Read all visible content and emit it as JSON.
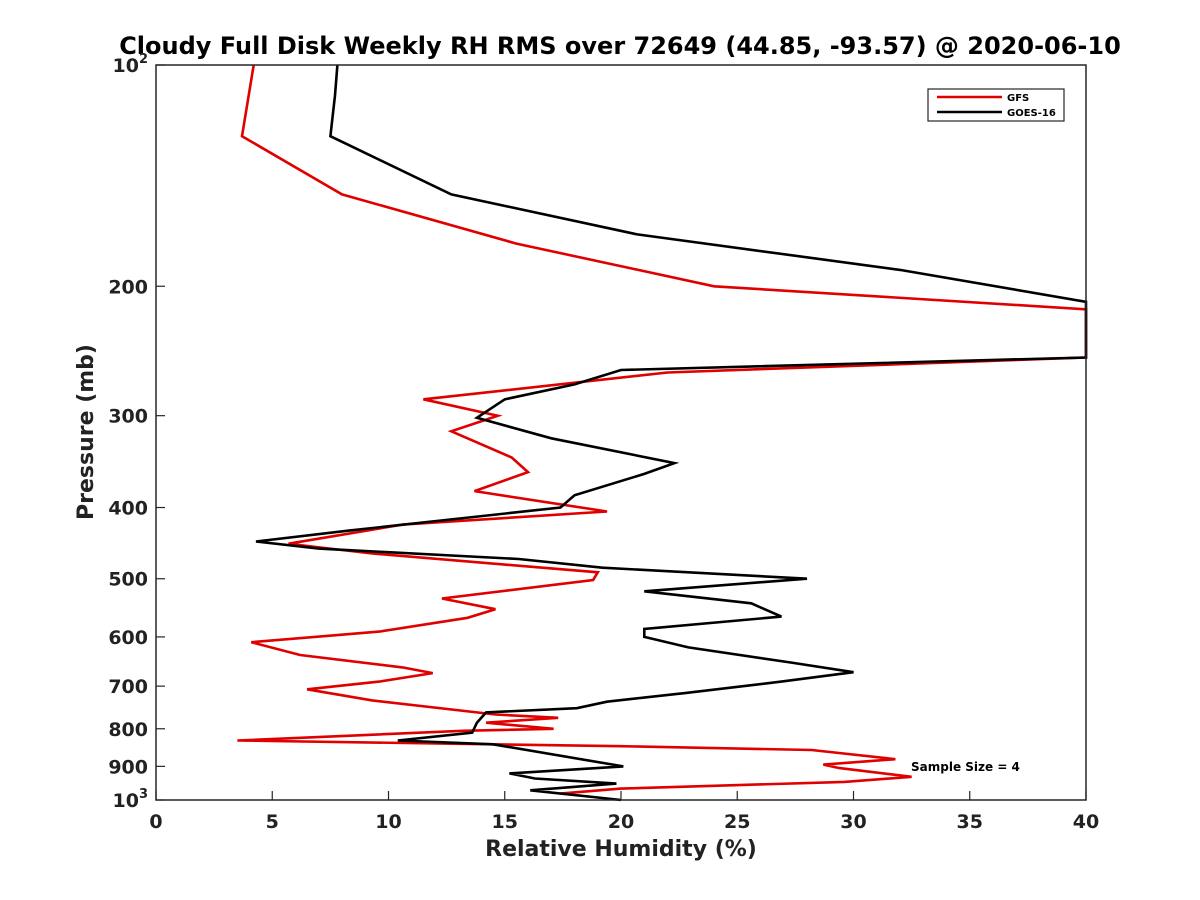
{
  "chart_data": {
    "type": "line",
    "title": "Cloudy Full Disk Weekly RH RMS over 72649 (44.85, -93.57) @ 2020-06-10",
    "xlabel": "Relative Humidity (%)",
    "ylabel": "Pressure (mb)",
    "xlim": [
      0,
      40
    ],
    "ylim": [
      100,
      1000
    ],
    "y_scale": "log",
    "y_reversed": true,
    "x_ticks": [
      "0",
      "5",
      "10",
      "15",
      "20",
      "25",
      "30",
      "35",
      "40"
    ],
    "y_ticks": [
      {
        "value": 100,
        "base": "10",
        "exp": "2"
      },
      {
        "value": 200,
        "label": "200"
      },
      {
        "value": 300,
        "label": "300"
      },
      {
        "value": 400,
        "label": "400"
      },
      {
        "value": 500,
        "label": "500"
      },
      {
        "value": 600,
        "label": "600"
      },
      {
        "value": 700,
        "label": "700"
      },
      {
        "value": 800,
        "label": "800"
      },
      {
        "value": 900,
        "label": "900"
      },
      {
        "value": 1000,
        "base": "10",
        "exp": "3"
      }
    ],
    "grid": false,
    "legend_position": "top-right",
    "annotation": "Sample Size = 4",
    "series": [
      {
        "name": "GFS",
        "color": "#e00000",
        "points": [
          [
            4.2,
            100
          ],
          [
            3.7,
            125
          ],
          [
            8.0,
            150
          ],
          [
            15.5,
            175
          ],
          [
            24.0,
            200
          ],
          [
            41.0,
            215
          ],
          [
            41.0,
            250
          ],
          [
            22.0,
            262
          ],
          [
            11.5,
            285
          ],
          [
            14.7,
            300
          ],
          [
            12.7,
            315
          ],
          [
            15.3,
            342
          ],
          [
            16.0,
            358
          ],
          [
            13.7,
            380
          ],
          [
            19.4,
            405
          ],
          [
            10.6,
            422
          ],
          [
            5.7,
            448
          ],
          [
            6.7,
            452
          ],
          [
            9.3,
            462
          ],
          [
            19.0,
            490
          ],
          [
            18.8,
            502
          ],
          [
            12.3,
            532
          ],
          [
            14.6,
            550
          ],
          [
            13.4,
            565
          ],
          [
            9.6,
            590
          ],
          [
            4.1,
            610
          ],
          [
            6.2,
            635
          ],
          [
            10.6,
            660
          ],
          [
            11.9,
            672
          ],
          [
            9.6,
            690
          ],
          [
            6.5,
            707
          ],
          [
            9.3,
            732
          ],
          [
            14.6,
            765
          ],
          [
            17.3,
            773
          ],
          [
            14.2,
            785
          ],
          [
            17.1,
            800
          ],
          [
            13.2,
            805
          ],
          [
            3.5,
            830
          ],
          [
            20.0,
            845
          ],
          [
            28.2,
            855
          ],
          [
            31.8,
            880
          ],
          [
            28.7,
            895
          ],
          [
            29.4,
            905
          ],
          [
            32.5,
            930
          ],
          [
            29.6,
            945
          ],
          [
            20.0,
            965
          ],
          [
            17.4,
            980
          ]
        ]
      },
      {
        "name": "GOES-16",
        "color": "#000000",
        "points": [
          [
            7.8,
            100
          ],
          [
            7.7,
            110
          ],
          [
            7.5,
            125
          ],
          [
            12.7,
            150
          ],
          [
            20.7,
            170
          ],
          [
            32.0,
            190
          ],
          [
            41.0,
            210
          ],
          [
            41.0,
            250
          ],
          [
            20.0,
            260
          ],
          [
            18.0,
            272
          ],
          [
            15.0,
            285
          ],
          [
            13.8,
            302
          ],
          [
            17.0,
            322
          ],
          [
            22.3,
            348
          ],
          [
            21.0,
            360
          ],
          [
            18.0,
            385
          ],
          [
            17.4,
            400
          ],
          [
            8.3,
            430
          ],
          [
            4.3,
            445
          ],
          [
            7.0,
            455
          ],
          [
            15.6,
            470
          ],
          [
            19.2,
            483
          ],
          [
            28.0,
            500
          ],
          [
            21.0,
            520
          ],
          [
            25.6,
            540
          ],
          [
            26.9,
            563
          ],
          [
            21.0,
            585
          ],
          [
            21.0,
            600
          ],
          [
            22.9,
            620
          ],
          [
            27.3,
            650
          ],
          [
            30.0,
            670
          ],
          [
            26.9,
            690
          ],
          [
            22.8,
            715
          ],
          [
            19.4,
            735
          ],
          [
            18.1,
            750
          ],
          [
            14.2,
            760
          ],
          [
            13.8,
            785
          ],
          [
            13.6,
            810
          ],
          [
            10.4,
            830
          ],
          [
            14.5,
            840
          ],
          [
            20.1,
            900
          ],
          [
            15.2,
            920
          ],
          [
            16.3,
            935
          ],
          [
            19.8,
            950
          ],
          [
            16.1,
            970
          ],
          [
            20.0,
            1000
          ]
        ]
      }
    ]
  }
}
